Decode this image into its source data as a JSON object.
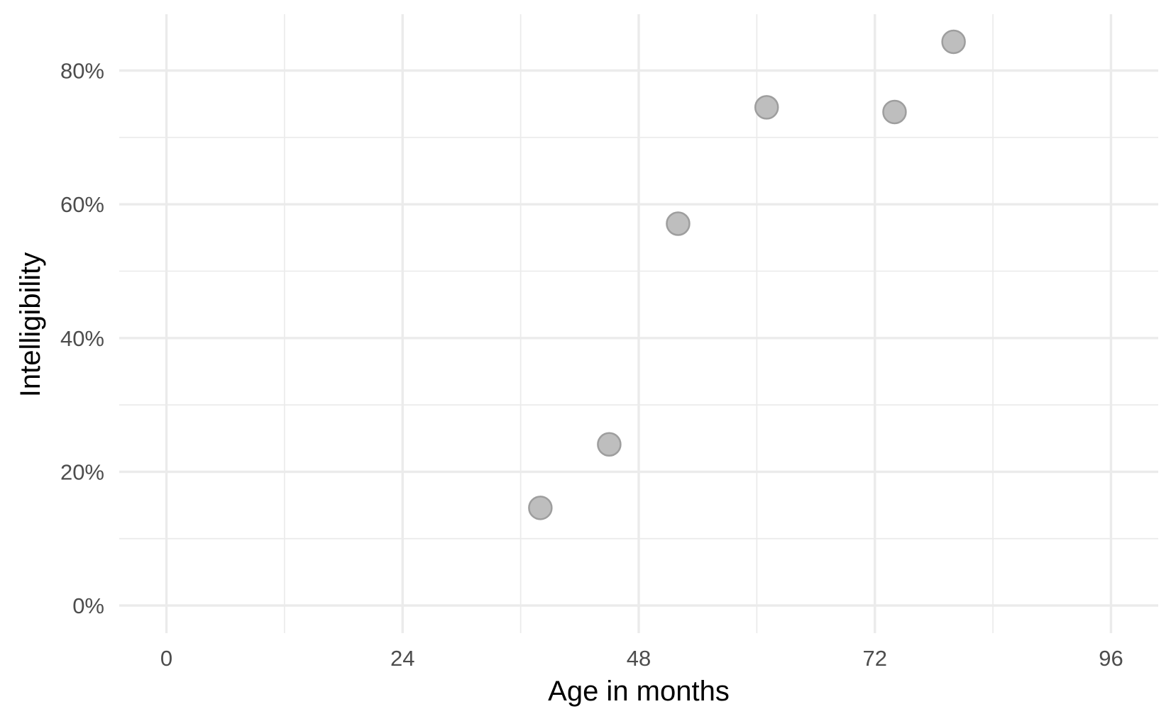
{
  "chart_data": {
    "type": "scatter",
    "title": "",
    "xlabel": "Age in months",
    "ylabel": "Intelligibility",
    "xlim": [
      -4.8,
      100.8
    ],
    "ylim": [
      -0.0413,
      0.8843
    ],
    "x_ticks": [
      0,
      24,
      48,
      72,
      96
    ],
    "x_tick_labels": [
      "0",
      "24",
      "48",
      "72",
      "96"
    ],
    "x_minor_ticks": [
      12,
      36,
      60,
      84
    ],
    "y_ticks": [
      0,
      0.2,
      0.4,
      0.6,
      0.8
    ],
    "y_tick_labels": [
      "0%",
      "20%",
      "40%",
      "60%",
      "80%"
    ],
    "y_minor_ticks": [
      0.1,
      0.3,
      0.5,
      0.7
    ],
    "grid": true,
    "legend": "none",
    "point_fill": "#bebebe",
    "point_stroke": "#9e9e9e",
    "points": [
      {
        "x": 38,
        "y": 0.146
      },
      {
        "x": 45,
        "y": 0.241
      },
      {
        "x": 52,
        "y": 0.571
      },
      {
        "x": 61,
        "y": 0.745
      },
      {
        "x": 74,
        "y": 0.738
      },
      {
        "x": 80,
        "y": 0.843
      }
    ]
  }
}
